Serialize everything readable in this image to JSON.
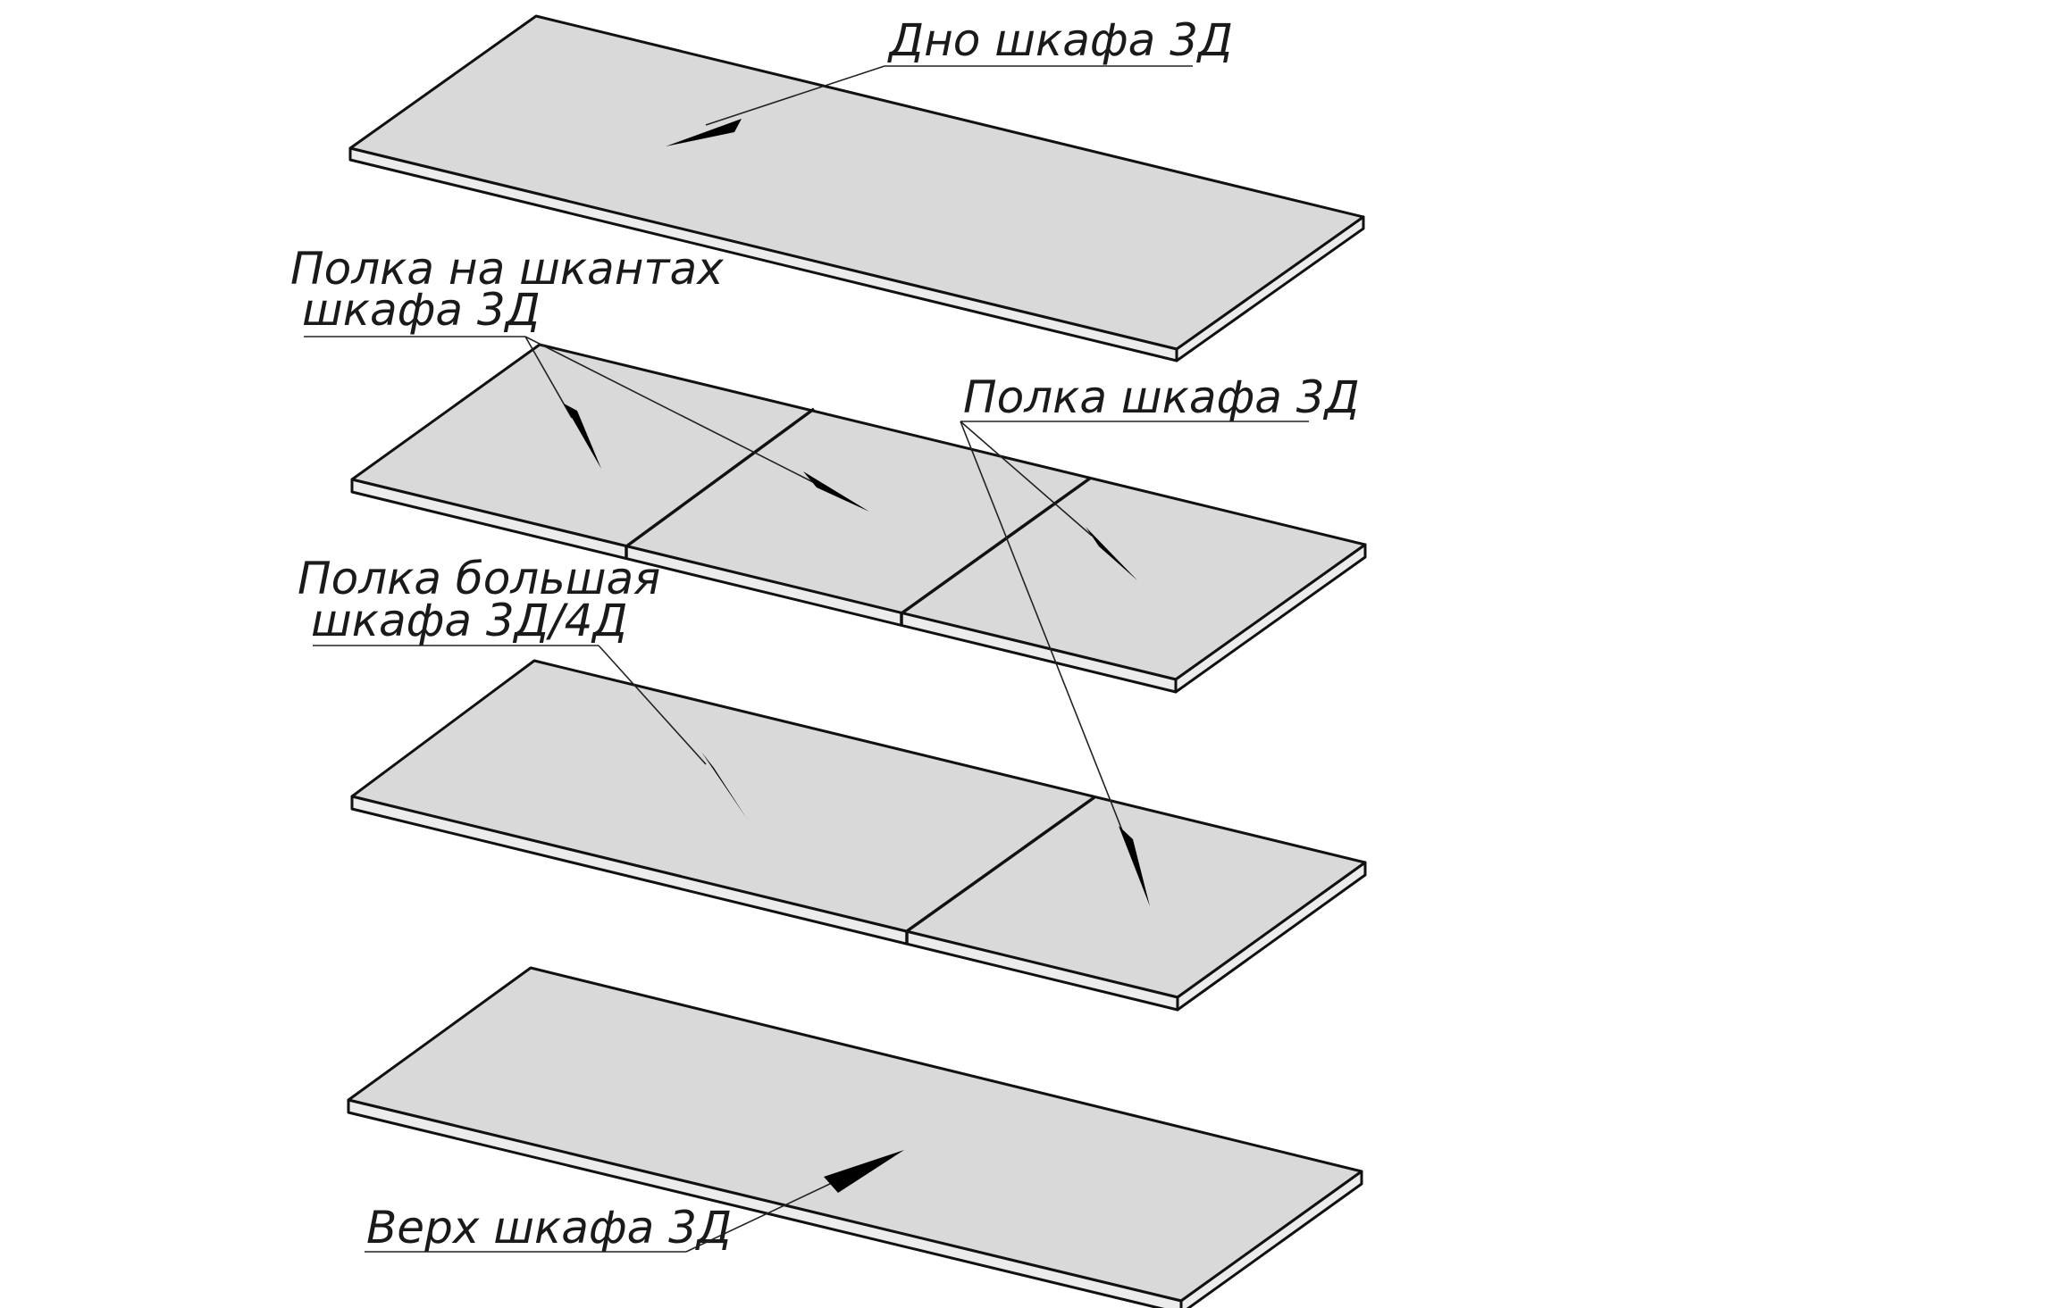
{
  "labels": {
    "bottom": "Дно шкафа 3Д",
    "dowel_shelf_line1": "Полка на шкантах",
    "dowel_shelf_line2": "шкафа 3Д",
    "shelf": "Полка шкафа 3Д",
    "big_shelf_line1": "Полка большая",
    "big_shelf_line2": "шкафа 3Д/4Д",
    "top": "Верх шкафа 3Д"
  },
  "colors": {
    "panel_face": "#d9d9d9",
    "panel_edge": "#ececec",
    "outline": "#111111",
    "background": "#ffffff"
  }
}
